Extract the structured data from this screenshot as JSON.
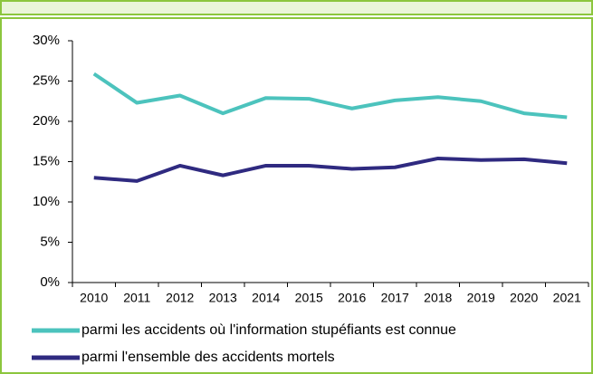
{
  "chart_data": {
    "type": "line",
    "categories": [
      "2010",
      "2011",
      "2012",
      "2013",
      "2014",
      "2015",
      "2016",
      "2017",
      "2018",
      "2019",
      "2020",
      "2021"
    ],
    "series": [
      {
        "name": "parmi les accidents où l'information stupéfiants est connue",
        "color": "#4cc3bd",
        "values": [
          25.9,
          22.3,
          23.2,
          21.0,
          22.9,
          22.8,
          21.6,
          22.6,
          23.0,
          22.5,
          21.0,
          20.5
        ]
      },
      {
        "name": "parmi l'ensemble des accidents mortels",
        "color": "#2f2a80",
        "values": [
          13.0,
          12.6,
          14.5,
          13.3,
          14.5,
          14.5,
          14.1,
          14.3,
          15.4,
          15.2,
          15.3,
          14.8
        ]
      }
    ],
    "ylim": [
      0,
      30
    ],
    "yticks": [
      {
        "value": 0,
        "label": "0%"
      },
      {
        "value": 5,
        "label": "5%"
      },
      {
        "value": 10,
        "label": "10%"
      },
      {
        "value": 15,
        "label": "15%"
      },
      {
        "value": 20,
        "label": "20%"
      },
      {
        "value": 25,
        "label": "25%"
      },
      {
        "value": 30,
        "label": "30%"
      }
    ],
    "grid": false
  }
}
